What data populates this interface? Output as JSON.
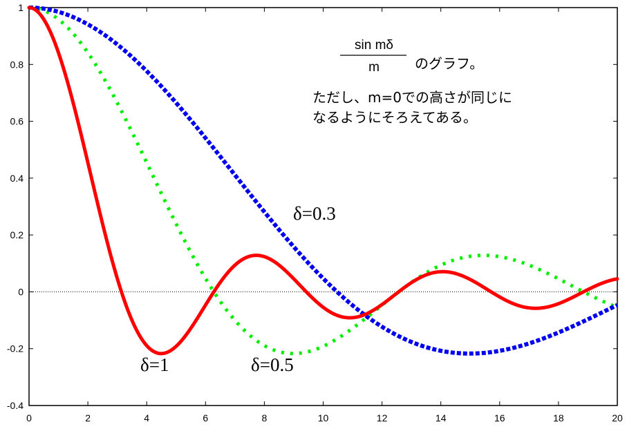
{
  "chart_data": {
    "type": "line",
    "title": "",
    "xlabel": "",
    "ylabel": "",
    "xlim": [
      0,
      20
    ],
    "ylim": [
      -0.4,
      1
    ],
    "xticks": [
      0,
      2,
      4,
      6,
      8,
      10,
      12,
      14,
      16,
      18,
      20
    ],
    "yticks": [
      -0.4,
      -0.2,
      0,
      0.2,
      0.4,
      0.6,
      0.8,
      1
    ],
    "ytick_labels": [
      "-0.4",
      "-0.2",
      "0",
      "0.2",
      "0.4",
      "0.6",
      "0.8",
      "1"
    ],
    "xtick_labels": [
      "0",
      "2",
      "4",
      "6",
      "8",
      "10",
      "12",
      "14",
      "16",
      "18",
      "20"
    ],
    "grid": false,
    "zero_line": true,
    "function": "sin(m*delta)/(m*delta)",
    "series": [
      {
        "name": "δ=1",
        "delta": 1,
        "color": "#ff0000",
        "style": "solid"
      },
      {
        "name": "δ=0.5",
        "delta": 0.5,
        "color": "#00ee00",
        "style": "dotted"
      },
      {
        "name": "δ=0.3",
        "delta": 0.3,
        "color": "#0000ee",
        "style": "dashed"
      }
    ],
    "annotations": {
      "numerator": "sin mδ",
      "denominator": "m",
      "graph_suffix": "のグラフ。",
      "note_line1": "ただし、m=0での高さが同じに",
      "note_line2": "なるようにそろえてある。"
    }
  }
}
